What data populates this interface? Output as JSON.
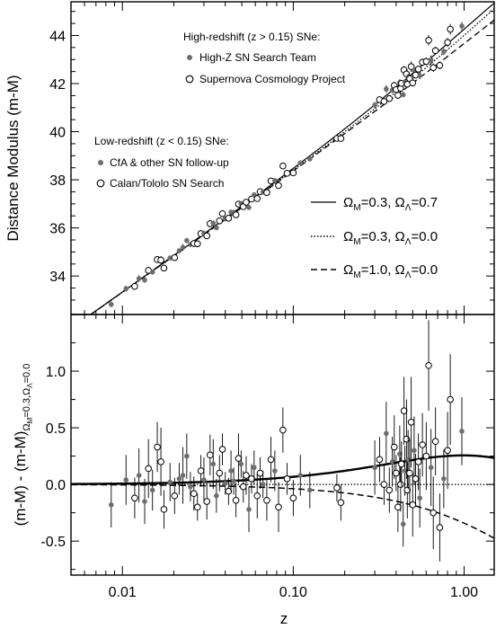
{
  "chart_data": [
    {
      "type": "scatter",
      "panel": "top",
      "ylabel": "Distance Modulus (m-M)",
      "xscale": "log",
      "xlim": [
        0.005,
        1.5
      ],
      "ylim": [
        32.4,
        45.4
      ],
      "yticks": [
        34,
        36,
        38,
        40,
        42,
        44
      ],
      "grid": false,
      "legend_groups": [
        {
          "title": "High-redshift (z > 0.15) SNe:",
          "entries": [
            {
              "label": "High-Z SN Search Team",
              "marker": "filled"
            },
            {
              "label": "Supernova Cosmology Project",
              "marker": "open"
            }
          ]
        },
        {
          "title": "Low-redshift (z < 0.15) SNe:",
          "entries": [
            {
              "label": "CfA & other SN follow-up",
              "marker": "filled"
            },
            {
              "label": "Calan/Tololo SN Search",
              "marker": "open"
            }
          ]
        }
      ],
      "models": [
        {
          "style": "solid",
          "om": 0.3,
          "ol": 0.7
        },
        {
          "style": "dotted",
          "om": 0.3,
          "ol": 0.0
        },
        {
          "style": "dashed",
          "om": 1.0,
          "ol": 0.0
        }
      ]
    },
    {
      "type": "scatter",
      "panel": "bottom",
      "xlabel": "z",
      "xscale": "log",
      "xlim": [
        0.005,
        1.5
      ],
      "xticks": [
        0.01,
        0.1,
        1.0
      ],
      "xticklabels": [
        "0.01",
        "0.10",
        "1.00"
      ],
      "ylim": [
        -0.8,
        1.5
      ],
      "yticks": [
        -0.5,
        0.0,
        0.5,
        1.0
      ],
      "yticklabels": [
        "-0.5",
        "0.0",
        "0.5",
        "1.0"
      ],
      "grid": false,
      "reference_model": {
        "om": 0.3,
        "ol": 0.0
      }
    }
  ],
  "points": [
    {
      "z": 0.0086,
      "r": -0.18,
      "e": 0.2,
      "open": false
    },
    {
      "z": 0.0105,
      "r": 0.04,
      "e": 0.22,
      "open": false
    },
    {
      "z": 0.0118,
      "r": -0.12,
      "e": 0.18,
      "open": true
    },
    {
      "z": 0.0125,
      "r": 0.08,
      "e": 0.24,
      "open": false
    },
    {
      "z": 0.0135,
      "r": -0.15,
      "e": 0.2,
      "open": false
    },
    {
      "z": 0.0142,
      "r": 0.14,
      "e": 0.26,
      "open": true
    },
    {
      "z": 0.015,
      "r": -0.05,
      "e": 0.18,
      "open": false
    },
    {
      "z": 0.016,
      "r": 0.33,
      "e": 0.22,
      "open": true
    },
    {
      "z": 0.0168,
      "r": 0.2,
      "e": 0.3,
      "open": true
    },
    {
      "z": 0.0175,
      "r": -0.22,
      "e": 0.17,
      "open": true
    },
    {
      "z": 0.019,
      "r": 0.02,
      "e": 0.17,
      "open": false
    },
    {
      "z": 0.0202,
      "r": -0.1,
      "e": 0.16,
      "open": true
    },
    {
      "z": 0.0215,
      "r": 0.05,
      "e": 0.14,
      "open": false
    },
    {
      "z": 0.0226,
      "r": 0.08,
      "e": 0.25,
      "open": false
    },
    {
      "z": 0.0238,
      "r": 0.25,
      "e": 0.2,
      "open": false
    },
    {
      "z": 0.025,
      "r": -0.02,
      "e": 0.13,
      "open": false
    },
    {
      "z": 0.0262,
      "r": -0.08,
      "e": 0.15,
      "open": true
    },
    {
      "z": 0.0275,
      "r": -0.2,
      "e": 0.12,
      "open": true
    },
    {
      "z": 0.0288,
      "r": 0.12,
      "e": 0.14,
      "open": true
    },
    {
      "z": 0.03,
      "r": 0.04,
      "e": 0.2,
      "open": false
    },
    {
      "z": 0.0312,
      "r": -0.15,
      "e": 0.16,
      "open": true
    },
    {
      "z": 0.0326,
      "r": 0.26,
      "e": 0.18,
      "open": true
    },
    {
      "z": 0.034,
      "r": 0.18,
      "e": 0.22,
      "open": false
    },
    {
      "z": 0.0355,
      "r": -0.1,
      "e": 0.15,
      "open": false
    },
    {
      "z": 0.037,
      "r": 0.1,
      "e": 0.16,
      "open": true
    },
    {
      "z": 0.0385,
      "r": 0.31,
      "e": 0.14,
      "open": true
    },
    {
      "z": 0.04,
      "r": 0.01,
      "e": 0.1,
      "open": false
    },
    {
      "z": 0.0418,
      "r": -0.06,
      "e": 0.12,
      "open": true
    },
    {
      "z": 0.0432,
      "r": 0.12,
      "e": 0.18,
      "open": false
    },
    {
      "z": 0.0448,
      "r": 0.03,
      "e": 0.12,
      "open": false
    },
    {
      "z": 0.0462,
      "r": -0.14,
      "e": 0.15,
      "open": true
    },
    {
      "z": 0.0478,
      "r": 0.23,
      "e": 0.22,
      "open": true
    },
    {
      "z": 0.0495,
      "r": 0.18,
      "e": 0.12,
      "open": false
    },
    {
      "z": 0.051,
      "r": -0.02,
      "e": 0.14,
      "open": true
    },
    {
      "z": 0.053,
      "r": 0.08,
      "e": 0.17,
      "open": true
    },
    {
      "z": 0.055,
      "r": -0.22,
      "e": 0.2,
      "open": false
    },
    {
      "z": 0.057,
      "r": 0.05,
      "e": 0.13,
      "open": true
    },
    {
      "z": 0.059,
      "r": 0.15,
      "e": 0.15,
      "open": false
    },
    {
      "z": 0.0615,
      "r": -0.1,
      "e": 0.2,
      "open": true
    },
    {
      "z": 0.064,
      "r": 0.1,
      "e": 0.14,
      "open": true
    },
    {
      "z": 0.0665,
      "r": 0.0,
      "e": 0.12,
      "open": false
    },
    {
      "z": 0.07,
      "r": -0.14,
      "e": 0.18,
      "open": true
    },
    {
      "z": 0.074,
      "r": 0.22,
      "e": 0.2,
      "open": true
    },
    {
      "z": 0.078,
      "r": 0.12,
      "e": 0.18,
      "open": false
    },
    {
      "z": 0.082,
      "r": -0.2,
      "e": 0.22,
      "open": true
    },
    {
      "z": 0.087,
      "r": 0.48,
      "e": 0.2,
      "open": true
    },
    {
      "z": 0.092,
      "r": 0.05,
      "e": 0.14,
      "open": true
    },
    {
      "z": 0.1,
      "r": -0.12,
      "e": 0.16,
      "open": true
    },
    {
      "z": 0.11,
      "r": 0.08,
      "e": 0.18,
      "open": false
    },
    {
      "z": 0.125,
      "r": -0.05,
      "e": 0.16,
      "open": false
    },
    {
      "z": 0.18,
      "r": -0.03,
      "e": 0.12,
      "open": true
    },
    {
      "z": 0.19,
      "r": -0.16,
      "e": 0.16,
      "open": true
    },
    {
      "z": 0.3,
      "r": 0.15,
      "e": 0.24,
      "open": false
    },
    {
      "z": 0.32,
      "r": 0.22,
      "e": 0.2,
      "open": true
    },
    {
      "z": 0.34,
      "r": 0.0,
      "e": 0.18,
      "open": true
    },
    {
      "z": 0.35,
      "r": 0.45,
      "e": 0.28,
      "open": false
    },
    {
      "z": 0.365,
      "r": -0.05,
      "e": 0.2,
      "open": true
    },
    {
      "z": 0.38,
      "r": 0.2,
      "e": 0.22,
      "open": false
    },
    {
      "z": 0.39,
      "r": 0.33,
      "e": 0.28,
      "open": true
    },
    {
      "z": 0.4,
      "r": 0.1,
      "e": 0.16,
      "open": true
    },
    {
      "z": 0.41,
      "r": -0.2,
      "e": 0.22,
      "open": true
    },
    {
      "z": 0.42,
      "r": 0.27,
      "e": 0.25,
      "open": false
    },
    {
      "z": 0.425,
      "r": 0.0,
      "e": 0.24,
      "open": true
    },
    {
      "z": 0.43,
      "r": 0.18,
      "e": 0.2,
      "open": true
    },
    {
      "z": 0.44,
      "r": -0.35,
      "e": 0.2,
      "open": false
    },
    {
      "z": 0.445,
      "r": 0.65,
      "e": 0.3,
      "open": true
    },
    {
      "z": 0.45,
      "r": 0.12,
      "e": 0.22,
      "open": false
    },
    {
      "z": 0.46,
      "r": 0.4,
      "e": 0.35,
      "open": true
    },
    {
      "z": 0.465,
      "r": -0.05,
      "e": 0.25,
      "open": true
    },
    {
      "z": 0.47,
      "r": 0.22,
      "e": 0.26,
      "open": false
    },
    {
      "z": 0.48,
      "r": 0.1,
      "e": 0.3,
      "open": true
    },
    {
      "z": 0.49,
      "r": 0.55,
      "e": 0.4,
      "open": true
    },
    {
      "z": 0.5,
      "r": -0.18,
      "e": 0.28,
      "open": true
    },
    {
      "z": 0.51,
      "r": 0.3,
      "e": 0.3,
      "open": false
    },
    {
      "z": 0.52,
      "r": 0.05,
      "e": 0.22,
      "open": true
    },
    {
      "z": 0.54,
      "r": 0.2,
      "e": 0.25,
      "open": true
    },
    {
      "z": 0.55,
      "r": -0.12,
      "e": 0.26,
      "open": false
    },
    {
      "z": 0.57,
      "r": 0.35,
      "e": 0.28,
      "open": true
    },
    {
      "z": 0.6,
      "r": 0.25,
      "e": 0.3,
      "open": true
    },
    {
      "z": 0.62,
      "r": 1.05,
      "e": 0.4,
      "open": true
    },
    {
      "z": 0.64,
      "r": 0.15,
      "e": 0.34,
      "open": false
    },
    {
      "z": 0.66,
      "r": -0.25,
      "e": 0.32,
      "open": true
    },
    {
      "z": 0.68,
      "r": 0.38,
      "e": 0.3,
      "open": true
    },
    {
      "z": 0.72,
      "r": -0.38,
      "e": 0.3,
      "open": true
    },
    {
      "z": 0.76,
      "r": 0.05,
      "e": 0.26,
      "open": false
    },
    {
      "z": 0.8,
      "r": 0.3,
      "e": 0.34,
      "open": true
    },
    {
      "z": 0.83,
      "r": 0.75,
      "e": 0.4,
      "open": true
    },
    {
      "z": 0.97,
      "r": 0.47,
      "e": 0.3,
      "open": false
    }
  ]
}
